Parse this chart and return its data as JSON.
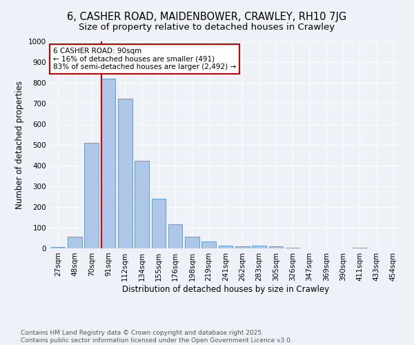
{
  "title": "6, CASHER ROAD, MAIDENBOWER, CRAWLEY, RH10 7JG",
  "subtitle": "Size of property relative to detached houses in Crawley",
  "xlabel": "Distribution of detached houses by size in Crawley",
  "ylabel": "Number of detached properties",
  "categories": [
    "27sqm",
    "48sqm",
    "70sqm",
    "91sqm",
    "112sqm",
    "134sqm",
    "155sqm",
    "176sqm",
    "198sqm",
    "219sqm",
    "241sqm",
    "262sqm",
    "283sqm",
    "305sqm",
    "326sqm",
    "347sqm",
    "369sqm",
    "390sqm",
    "411sqm",
    "433sqm",
    "454sqm"
  ],
  "values": [
    8,
    57,
    510,
    820,
    725,
    425,
    240,
    117,
    57,
    33,
    14,
    10,
    12,
    9,
    5,
    1,
    0,
    0,
    5,
    0,
    0
  ],
  "bar_color": "#aec6e8",
  "bar_edge_color": "#5a9fd4",
  "vline_x_index": 3,
  "vline_color": "#cc0000",
  "annotation_text": "6 CASHER ROAD: 90sqm\n← 16% of detached houses are smaller (491)\n83% of semi-detached houses are larger (2,492) →",
  "annotation_box_color": "#ffffff",
  "annotation_box_edge_color": "#cc0000",
  "ylim": [
    0,
    1000
  ],
  "yticks": [
    0,
    100,
    200,
    300,
    400,
    500,
    600,
    700,
    800,
    900,
    1000
  ],
  "footnote": "Contains HM Land Registry data © Crown copyright and database right 2025.\nContains public sector information licensed under the Open Government Licence v3.0.",
  "background_color": "#eef2f8",
  "grid_color": "#ffffff",
  "title_fontsize": 10.5,
  "subtitle_fontsize": 9.5,
  "axis_label_fontsize": 8.5,
  "tick_fontsize": 7.5,
  "annotation_fontsize": 7.5,
  "footnote_fontsize": 6.5
}
